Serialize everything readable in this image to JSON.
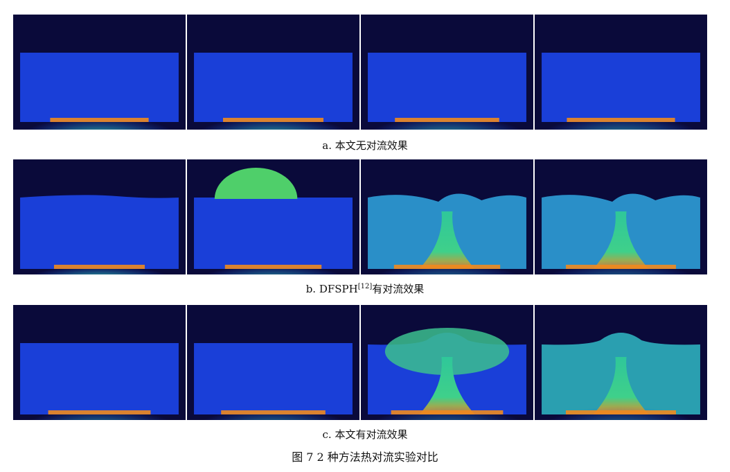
{
  "rows": [
    {
      "caption_prefix": "a. 本文无对流效果",
      "caption_ref": "",
      "caption_suffix": "",
      "panels": [
        {
          "type": "flat",
          "glow": 0.55,
          "surface": "flat"
        },
        {
          "type": "flat",
          "glow": 0.6,
          "surface": "flat"
        },
        {
          "type": "flat",
          "glow": 0.7,
          "surface": "flat"
        },
        {
          "type": "flat",
          "glow": 0.8,
          "surface": "flat"
        }
      ]
    },
    {
      "caption_prefix": "b. DFSPH",
      "caption_ref": "[12]",
      "caption_suffix": "有对流效果",
      "panels": [
        {
          "type": "flat",
          "glow": 0.35,
          "surface": "wavy-low"
        },
        {
          "type": "dome-burst",
          "glow": 0.5,
          "surface": "flat"
        },
        {
          "type": "plume",
          "glow": 0.75,
          "surface": "wavy"
        },
        {
          "type": "plume",
          "glow": 0.85,
          "surface": "wavy"
        }
      ]
    },
    {
      "caption_prefix": "c. 本文有对流效果",
      "caption_ref": "",
      "caption_suffix": "",
      "panels": [
        {
          "type": "flat",
          "glow": 0.65,
          "surface": "flat"
        },
        {
          "type": "flat",
          "glow": 0.7,
          "surface": "flat"
        },
        {
          "type": "mushroom",
          "glow": 0.9,
          "surface": "dome"
        },
        {
          "type": "plume",
          "glow": 0.85,
          "surface": "dome"
        }
      ]
    }
  ],
  "figure_caption": "图 7    2 种方法热对流实验对比",
  "colors": {
    "background": "#0a0a3a",
    "cold": "#1a3fd8",
    "warm": "#2fc79a",
    "hot": "#f08a1e"
  }
}
